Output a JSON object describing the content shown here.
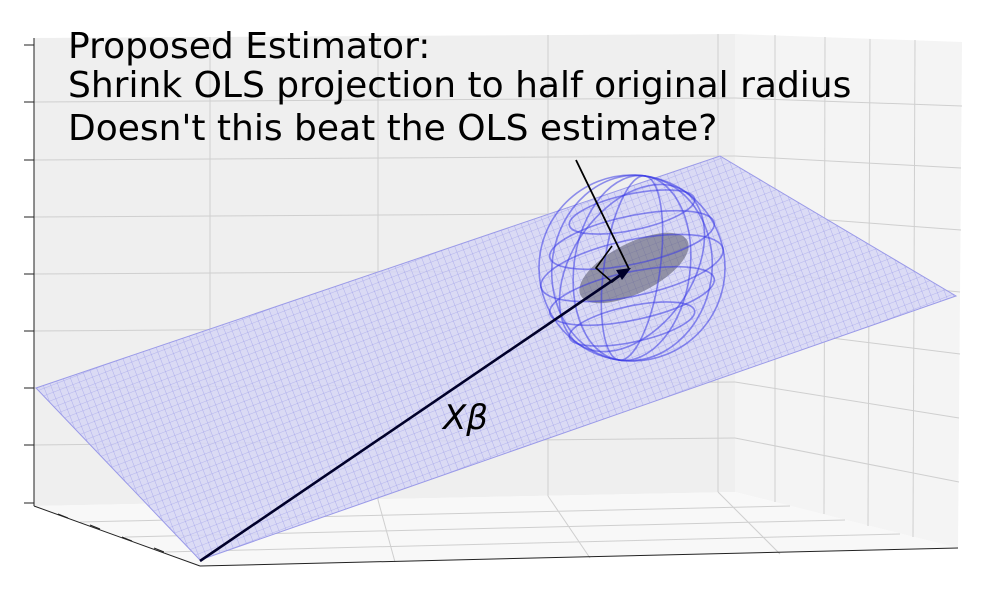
{
  "title": {
    "line1": "Proposed Estimator:",
    "line2": "Shrink OLS projection to half original radius",
    "line3": "Doesn't this beat the OLS estimate?"
  },
  "vector_label": "Xβ",
  "colors": {
    "plane_fill": "#d9d9f5",
    "plane_mesh": "#7b7be0",
    "sphere_wire": "#3b3be8",
    "disk": "#6e6e7e",
    "vector": "#000033",
    "pane_light": "#f2f2f2",
    "pane_floor": "#f7f7f7",
    "grid": "#c8c8c8"
  }
}
